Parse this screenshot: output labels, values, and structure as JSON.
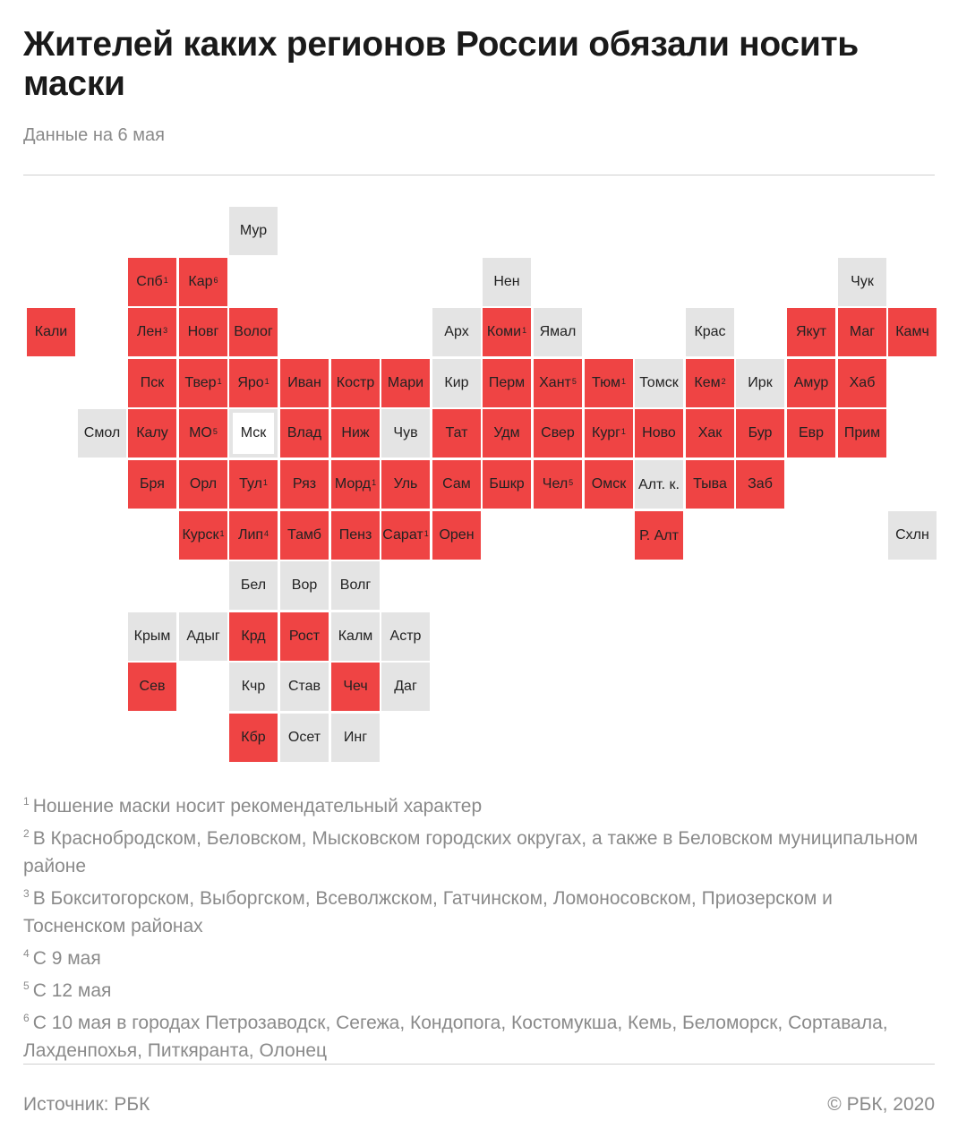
{
  "header": {
    "title": "Жителей каких регионов России обязали носить маски",
    "subtitle": "Данные на 6 мая"
  },
  "colors": {
    "masks_required": "#ef4444",
    "not_required": "#e4e4e4",
    "highlight_outline": "#e4e4e4"
  },
  "map": {
    "regions": [
      {
        "label": "Мур",
        "status": "not_required",
        "col": 4,
        "row": 0
      },
      {
        "label": "Спб",
        "note": "1",
        "status": "masks_required",
        "col": 2,
        "row": 1
      },
      {
        "label": "Кар",
        "note": "6",
        "status": "masks_required",
        "col": 3,
        "row": 1
      },
      {
        "label": "Нен",
        "status": "not_required",
        "col": 9,
        "row": 1
      },
      {
        "label": "Чук",
        "status": "not_required",
        "col": 16,
        "row": 1
      },
      {
        "label": "Кали",
        "status": "masks_required",
        "col": 0,
        "row": 2
      },
      {
        "label": "Лен",
        "note": "3",
        "status": "masks_required",
        "col": 2,
        "row": 2
      },
      {
        "label": "Новг",
        "status": "masks_required",
        "col": 3,
        "row": 2
      },
      {
        "label": "Волог",
        "status": "masks_required",
        "col": 4,
        "row": 2
      },
      {
        "label": "Арх",
        "status": "not_required",
        "col": 8,
        "row": 2
      },
      {
        "label": "Коми",
        "note": "1",
        "status": "masks_required",
        "col": 9,
        "row": 2
      },
      {
        "label": "Ямал",
        "status": "not_required",
        "col": 10,
        "row": 2
      },
      {
        "label": "Крас",
        "status": "not_required",
        "col": 13,
        "row": 2
      },
      {
        "label": "Якут",
        "status": "masks_required",
        "col": 15,
        "row": 2
      },
      {
        "label": "Маг",
        "status": "masks_required",
        "col": 16,
        "row": 2
      },
      {
        "label": "Камч",
        "status": "masks_required",
        "col": 17,
        "row": 2
      },
      {
        "label": "Пск",
        "status": "masks_required",
        "col": 2,
        "row": 3
      },
      {
        "label": "Твер",
        "note": "1",
        "status": "masks_required",
        "col": 3,
        "row": 3
      },
      {
        "label": "Яро",
        "note": "1",
        "status": "masks_required",
        "col": 4,
        "row": 3
      },
      {
        "label": "Иван",
        "status": "masks_required",
        "col": 5,
        "row": 3
      },
      {
        "label": "Костр",
        "status": "masks_required",
        "col": 6,
        "row": 3
      },
      {
        "label": "Мари",
        "status": "masks_required",
        "col": 7,
        "row": 3
      },
      {
        "label": "Кир",
        "status": "not_required",
        "col": 8,
        "row": 3
      },
      {
        "label": "Перм",
        "status": "masks_required",
        "col": 9,
        "row": 3
      },
      {
        "label": "Хант",
        "note": "5",
        "status": "masks_required",
        "col": 10,
        "row": 3
      },
      {
        "label": "Тюм",
        "note": "1",
        "status": "masks_required",
        "col": 11,
        "row": 3
      },
      {
        "label": "Томск",
        "status": "not_required",
        "col": 12,
        "row": 3
      },
      {
        "label": "Кем",
        "note": "2",
        "status": "masks_required",
        "col": 13,
        "row": 3
      },
      {
        "label": "Ирк",
        "status": "not_required",
        "col": 14,
        "row": 3
      },
      {
        "label": "Амур",
        "status": "masks_required",
        "col": 15,
        "row": 3
      },
      {
        "label": "Хаб",
        "status": "masks_required",
        "col": 16,
        "row": 3
      },
      {
        "label": "Смол",
        "status": "not_required",
        "col": 1,
        "row": 4
      },
      {
        "label": "Калу",
        "status": "masks_required",
        "col": 2,
        "row": 4
      },
      {
        "label": "МО",
        "note": "5",
        "status": "masks_required",
        "col": 3,
        "row": 4
      },
      {
        "label": "Мск",
        "status": "not_required",
        "outline": true,
        "col": 4,
        "row": 4
      },
      {
        "label": "Влад",
        "status": "masks_required",
        "col": 5,
        "row": 4
      },
      {
        "label": "Ниж",
        "status": "masks_required",
        "col": 6,
        "row": 4
      },
      {
        "label": "Чув",
        "status": "not_required",
        "col": 7,
        "row": 4
      },
      {
        "label": "Тат",
        "status": "masks_required",
        "col": 8,
        "row": 4
      },
      {
        "label": "Удм",
        "status": "masks_required",
        "col": 9,
        "row": 4
      },
      {
        "label": "Свер",
        "status": "masks_required",
        "col": 10,
        "row": 4
      },
      {
        "label": "Кург",
        "note": "1",
        "status": "masks_required",
        "col": 11,
        "row": 4
      },
      {
        "label": "Ново",
        "status": "masks_required",
        "col": 12,
        "row": 4
      },
      {
        "label": "Хак",
        "status": "masks_required",
        "col": 13,
        "row": 4
      },
      {
        "label": "Бур",
        "status": "masks_required",
        "col": 14,
        "row": 4
      },
      {
        "label": "Евр",
        "status": "masks_required",
        "col": 15,
        "row": 4
      },
      {
        "label": "Прим",
        "status": "masks_required",
        "col": 16,
        "row": 4
      },
      {
        "label": "Бря",
        "status": "masks_required",
        "col": 2,
        "row": 5
      },
      {
        "label": "Орл",
        "status": "masks_required",
        "col": 3,
        "row": 5
      },
      {
        "label": "Тул",
        "note": "1",
        "status": "masks_required",
        "col": 4,
        "row": 5
      },
      {
        "label": "Ряз",
        "status": "masks_required",
        "col": 5,
        "row": 5
      },
      {
        "label": "Морд",
        "note": "1",
        "status": "masks_required",
        "col": 6,
        "row": 5
      },
      {
        "label": "Уль",
        "status": "masks_required",
        "col": 7,
        "row": 5
      },
      {
        "label": "Сам",
        "status": "masks_required",
        "col": 8,
        "row": 5
      },
      {
        "label": "Бшкр",
        "status": "masks_required",
        "col": 9,
        "row": 5
      },
      {
        "label": "Чел",
        "note": "5",
        "status": "masks_required",
        "col": 10,
        "row": 5
      },
      {
        "label": "Омск",
        "status": "masks_required",
        "col": 11,
        "row": 5
      },
      {
        "label": "Алт. к.",
        "status": "not_required",
        "multiline": true,
        "col": 12,
        "row": 5
      },
      {
        "label": "Тыва",
        "status": "masks_required",
        "col": 13,
        "row": 5
      },
      {
        "label": "Заб",
        "status": "masks_required",
        "col": 14,
        "row": 5
      },
      {
        "label": "Курск",
        "note": "1",
        "status": "masks_required",
        "col": 3,
        "row": 6
      },
      {
        "label": "Лип",
        "note": "4",
        "status": "masks_required",
        "col": 4,
        "row": 6
      },
      {
        "label": "Тамб",
        "status": "masks_required",
        "col": 5,
        "row": 6
      },
      {
        "label": "Пенз",
        "status": "masks_required",
        "col": 6,
        "row": 6
      },
      {
        "label": "Сарат",
        "note": "1",
        "status": "masks_required",
        "col": 7,
        "row": 6
      },
      {
        "label": "Орен",
        "status": "masks_required",
        "col": 8,
        "row": 6
      },
      {
        "label": "Р. Алт",
        "status": "masks_required",
        "multiline": true,
        "col": 12,
        "row": 6
      },
      {
        "label": "Схлн",
        "status": "not_required",
        "col": 17,
        "row": 6
      },
      {
        "label": "Бел",
        "status": "not_required",
        "col": 4,
        "row": 7
      },
      {
        "label": "Вор",
        "status": "not_required",
        "col": 5,
        "row": 7
      },
      {
        "label": "Волг",
        "status": "not_required",
        "col": 6,
        "row": 7
      },
      {
        "label": "Крым",
        "status": "not_required",
        "col": 2,
        "row": 8
      },
      {
        "label": "Адыг",
        "status": "not_required",
        "col": 3,
        "row": 8
      },
      {
        "label": "Крд",
        "status": "masks_required",
        "col": 4,
        "row": 8
      },
      {
        "label": "Рост",
        "status": "masks_required",
        "col": 5,
        "row": 8
      },
      {
        "label": "Калм",
        "status": "not_required",
        "col": 6,
        "row": 8
      },
      {
        "label": "Астр",
        "status": "not_required",
        "col": 7,
        "row": 8
      },
      {
        "label": "Сев",
        "status": "masks_required",
        "col": 2,
        "row": 9
      },
      {
        "label": "Кчр",
        "status": "not_required",
        "col": 4,
        "row": 9
      },
      {
        "label": "Став",
        "status": "not_required",
        "col": 5,
        "row": 9
      },
      {
        "label": "Чеч",
        "status": "masks_required",
        "col": 6,
        "row": 9
      },
      {
        "label": "Даг",
        "status": "not_required",
        "col": 7,
        "row": 9
      },
      {
        "label": "Кбр",
        "status": "masks_required",
        "col": 4,
        "row": 10
      },
      {
        "label": "Осет",
        "status": "not_required",
        "col": 5,
        "row": 10
      },
      {
        "label": "Инг",
        "status": "not_required",
        "col": 6,
        "row": 10
      }
    ]
  },
  "notes": [
    {
      "mark": "1",
      "text": "Ношение маски носит рекомендательный характер"
    },
    {
      "mark": "2",
      "text": "В Краснобродском, Беловском, Мысковском городских округах, а также в Беловском муниципальном районе"
    },
    {
      "mark": "3",
      "text": "В Бокситогорском, Выборгском, Всеволжском, Гатчинском, Ломоносовском, Приозерском и Тосненском районах"
    },
    {
      "mark": "4",
      "text": "С 9 мая"
    },
    {
      "mark": "5",
      "text": "С 12 мая"
    },
    {
      "mark": "6",
      "text": "С 10 мая в городах Петрозаводск, Сегежа, Кондопога, Костомукша, Кемь, Беломорск, Сортавала, Лахденпохья, Питкяранта, Олонец"
    }
  ],
  "footer": {
    "source": "Источник: РБК",
    "copyright": "© РБК, 2020"
  }
}
